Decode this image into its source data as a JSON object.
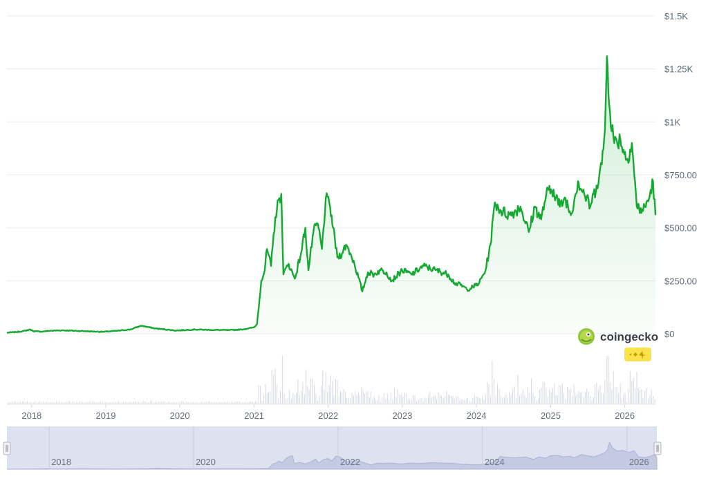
{
  "chart_data": {
    "type": "line",
    "title": "",
    "xlabel": "",
    "ylabel": "",
    "x_tick_labels": [
      "2018",
      "2019",
      "2020",
      "2021",
      "2022",
      "2023",
      "2024",
      "2025",
      "2026"
    ],
    "y_tick_labels": [
      "$0",
      "$250.00",
      "$500.00",
      "$750.00",
      "$1K",
      "$1.25K",
      "$1.5K"
    ],
    "y_tick_values": [
      0,
      250,
      500,
      750,
      1000,
      1250,
      1500
    ],
    "ylim": [
      0,
      1500
    ],
    "xlim": [
      "2017-09-01",
      "2026-06-01"
    ],
    "navigator_tick_labels": [
      "2018",
      "2020",
      "2022",
      "2024",
      "2026"
    ],
    "grid": true,
    "legend": "none",
    "line_color": "#16a832",
    "series": [
      {
        "x": [
          "2017-09-01",
          "2017-10-15",
          "2017-11-20",
          "2017-12-25",
          "2018-01-10",
          "2018-02-15",
          "2018-04-01",
          "2018-06-01",
          "2018-09-01",
          "2018-12-15",
          "2019-03-01",
          "2019-05-01",
          "2019-06-25",
          "2019-09-01",
          "2019-12-15",
          "2020-03-15",
          "2020-06-01",
          "2020-09-01",
          "2020-11-01",
          "2020-12-31",
          "2021-01-15",
          "2021-02-05",
          "2021-02-22",
          "2021-03-05",
          "2021-03-25",
          "2021-04-15",
          "2021-05-05",
          "2021-05-15",
          "2021-05-25",
          "2021-06-20",
          "2021-07-20",
          "2021-08-20",
          "2021-09-10",
          "2021-09-25",
          "2021-10-20",
          "2021-11-10",
          "2021-12-01",
          "2021-12-20",
          "2022-01-10",
          "2022-01-25",
          "2022-02-15",
          "2022-03-10",
          "2022-03-30",
          "2022-04-20",
          "2022-05-10",
          "2022-06-18",
          "2022-07-15",
          "2022-08-15",
          "2022-09-15",
          "2022-10-15",
          "2022-11-10",
          "2022-12-31",
          "2023-02-15",
          "2023-04-15",
          "2023-06-15",
          "2023-08-15",
          "2023-09-15",
          "2023-10-15",
          "2023-11-15",
          "2023-12-15",
          "2024-01-15",
          "2024-02-15",
          "2024-03-10",
          "2024-04-01",
          "2024-05-01",
          "2024-06-15",
          "2024-08-05",
          "2024-09-15",
          "2024-10-15",
          "2024-11-15",
          "2024-12-10",
          "2025-01-15",
          "2025-02-15",
          "2025-03-15",
          "2025-04-10",
          "2025-05-15",
          "2025-06-15",
          "2025-07-15",
          "2025-08-15",
          "2025-09-10",
          "2025-09-25",
          "2025-10-05",
          "2025-10-20",
          "2025-11-10",
          "2025-12-10",
          "2026-01-10",
          "2026-02-05",
          "2026-03-01",
          "2026-04-01",
          "2026-05-01",
          "2026-05-20",
          "2026-06-01"
        ],
        "y": [
          5,
          8,
          12,
          20,
          12,
          10,
          14,
          16,
          13,
          9,
          14,
          20,
          38,
          25,
          15,
          20,
          18,
          17,
          20,
          30,
          45,
          250,
          300,
          400,
          320,
          550,
          640,
          660,
          280,
          330,
          260,
          380,
          500,
          300,
          480,
          520,
          400,
          640,
          600,
          500,
          360,
          380,
          420,
          380,
          330,
          200,
          290,
          280,
          300,
          290,
          250,
          300,
          280,
          320,
          300,
          280,
          240,
          230,
          210,
          220,
          240,
          300,
          420,
          620,
          580,
          560,
          600,
          480,
          600,
          540,
          660,
          680,
          600,
          640,
          560,
          720,
          660,
          600,
          700,
          800,
          960,
          1310,
          1050,
          900,
          920,
          820,
          900,
          600,
          580,
          640,
          720,
          560
        ]
      }
    ]
  },
  "watermark": {
    "brand_text": "coingecko",
    "logo_name": "gecko-logo",
    "badge_icon_name": "sparkle-badge-icon"
  }
}
